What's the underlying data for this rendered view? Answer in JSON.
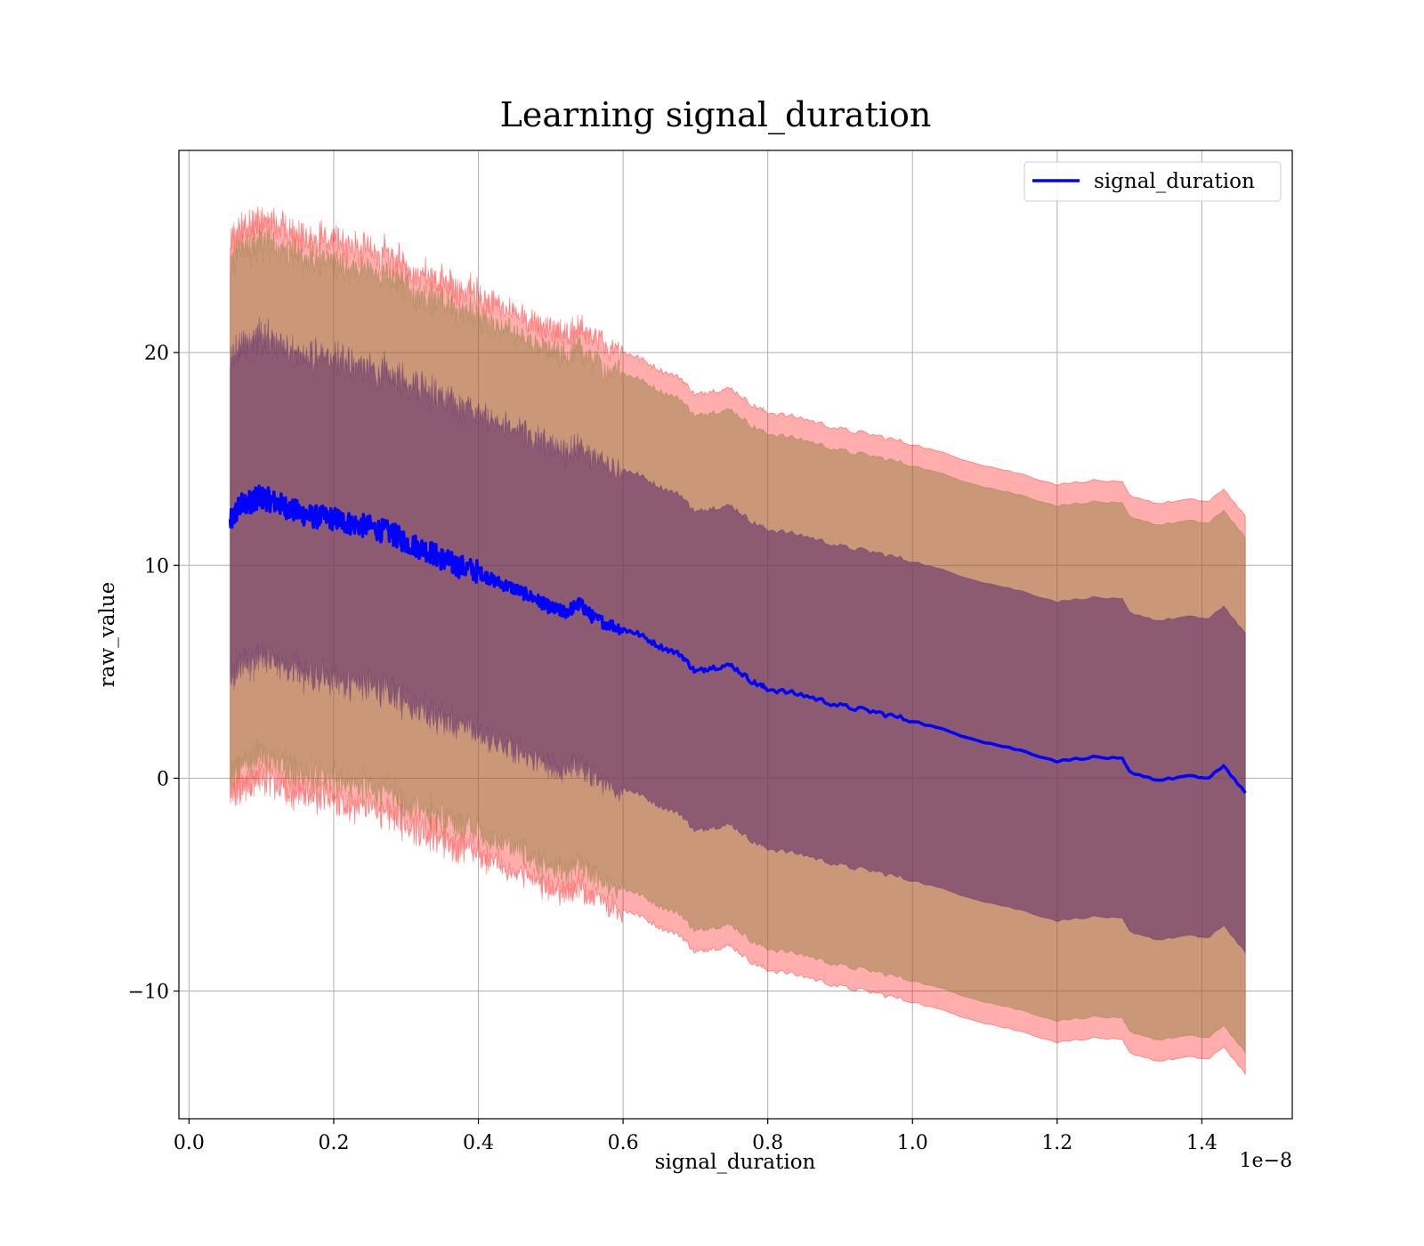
{
  "chart_data": {
    "type": "line",
    "title": "Learning signal_duration",
    "xlabel": "signal_duration",
    "ylabel": "raw_value",
    "x_offset_label": "1e−8",
    "xlim": [
      -0.014,
      1.525
    ],
    "ylim": [
      -16.0,
      29.5
    ],
    "xticks": [
      0.0,
      0.2,
      0.4,
      0.6,
      0.8,
      1.0,
      1.2,
      1.4
    ],
    "xtick_labels": [
      "0.0",
      "0.2",
      "0.4",
      "0.6",
      "0.8",
      "1.0",
      "1.2",
      "1.4"
    ],
    "yticks": [
      -10,
      0,
      10,
      20
    ],
    "ytick_labels": [
      "−10",
      "0",
      "10",
      "20"
    ],
    "grid": true,
    "legend": {
      "location": "top-right",
      "entries": [
        "signal_duration"
      ]
    },
    "colors": {
      "line": "#0000ff",
      "outer_band": "#ff0000",
      "middle_band": "#8b7d3a",
      "inner_band": "#5a2a6e"
    },
    "series": [
      {
        "name": "signal_duration",
        "x": [
          0.057,
          0.07,
          0.085,
          0.095,
          0.11,
          0.13,
          0.15,
          0.17,
          0.2,
          0.22,
          0.25,
          0.28,
          0.3,
          0.33,
          0.35,
          0.37,
          0.4,
          0.42,
          0.45,
          0.48,
          0.5,
          0.52,
          0.54,
          0.56,
          0.6,
          0.62,
          0.65,
          0.68,
          0.7,
          0.72,
          0.75,
          0.78,
          0.8,
          0.85,
          0.9,
          0.95,
          1.0,
          1.05,
          1.1,
          1.15,
          1.2,
          1.25,
          1.29,
          1.3,
          1.34,
          1.38,
          1.41,
          1.43,
          1.46
        ],
        "y": [
          12.0,
          12.8,
          13.0,
          13.2,
          13.1,
          12.8,
          12.5,
          12.3,
          12.2,
          12.0,
          11.8,
          11.5,
          11.1,
          10.7,
          10.3,
          10.0,
          9.7,
          9.3,
          8.9,
          8.4,
          8.0,
          7.8,
          8.2,
          7.5,
          7.0,
          6.8,
          6.2,
          5.8,
          5.0,
          5.2,
          5.3,
          4.5,
          4.2,
          3.9,
          3.4,
          3.1,
          2.7,
          2.2,
          1.7,
          1.3,
          0.8,
          1.0,
          0.9,
          0.3,
          -0.1,
          0.1,
          0.0,
          0.6,
          -0.7
        ]
      }
    ],
    "bands": [
      {
        "sigma": 3,
        "upper_offset": 13.0,
        "lower_offset": -13.2
      },
      {
        "sigma": 2,
        "upper_offset": 12.0,
        "lower_offset": -12.2
      },
      {
        "sigma": 1,
        "upper_offset": 7.5,
        "lower_offset": -7.5
      }
    ]
  }
}
